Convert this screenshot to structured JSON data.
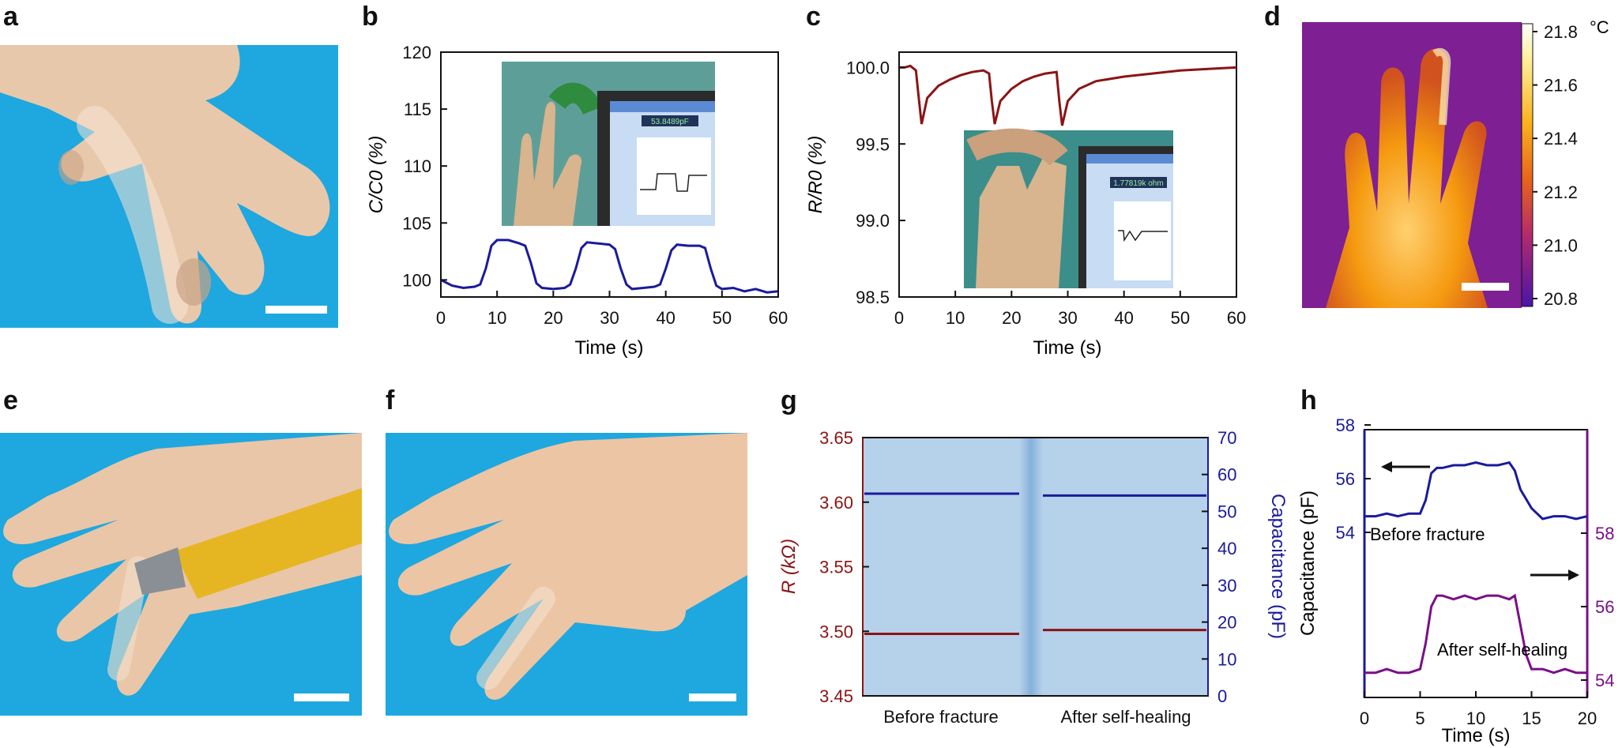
{
  "panels": {
    "a": "a",
    "b": "b",
    "c": "c",
    "d": "d",
    "e": "e",
    "f": "f",
    "g": "g",
    "h": "h"
  },
  "colors": {
    "blue_line": "#1a1a9c",
    "red_line": "#8b1414",
    "purple_line": "#7a0f87",
    "g_background": "#b6d1ea",
    "photo_blue": "#1fa7df",
    "skin": "#e9c6a8"
  },
  "chart_data": [
    {
      "panel": "b",
      "type": "line",
      "xlabel": "Time (s)",
      "ylabel": "C/C0 (%)",
      "xlim": [
        0,
        60
      ],
      "ylim": [
        98.5,
        120
      ],
      "xticks": [
        "0",
        "10",
        "20",
        "30",
        "40",
        "50",
        "60"
      ],
      "yticks": [
        "100",
        "105",
        "110",
        "115",
        "120"
      ],
      "series": [
        {
          "color": "#1a1a9c",
          "x": [
            0,
            2,
            4,
            6,
            7,
            8,
            9,
            10,
            12,
            14,
            15,
            16,
            17,
            18,
            20,
            22,
            23,
            24,
            25,
            26,
            28,
            30,
            31,
            32,
            33,
            34,
            36,
            38,
            39,
            40,
            41,
            42,
            44,
            46,
            47,
            48,
            49,
            50,
            52,
            54,
            56,
            58,
            60
          ],
          "y": [
            100.0,
            99.5,
            99.3,
            99.4,
            99.6,
            101.0,
            103.0,
            103.5,
            103.5,
            103.2,
            103.0,
            101.5,
            99.7,
            99.3,
            99.2,
            99.3,
            99.6,
            101.0,
            102.8,
            103.3,
            103.2,
            103.1,
            102.7,
            101.0,
            99.6,
            99.2,
            99.3,
            99.4,
            99.6,
            101.0,
            102.6,
            103.1,
            103.0,
            103.0,
            102.8,
            101.0,
            99.5,
            99.2,
            99.3,
            99.0,
            99.2,
            98.9,
            99.0
          ]
        }
      ],
      "inset": "photo of robotic finger bending with capacitance readout",
      "inset_readout": "53.8489pF"
    },
    {
      "panel": "c",
      "type": "line",
      "xlabel": "Time (s)",
      "ylabel": "R/R0 (%)",
      "xlim": [
        0,
        60
      ],
      "ylim": [
        98.5,
        100.1
      ],
      "xticks": [
        "0",
        "10",
        "20",
        "30",
        "40",
        "50",
        "60"
      ],
      "yticks": [
        "98.5",
        "99.0",
        "99.5",
        "100.0"
      ],
      "series": [
        {
          "color": "#8b1414",
          "x": [
            0,
            1,
            2,
            3,
            3.5,
            4,
            5,
            7,
            9,
            11,
            13,
            15,
            16,
            16.5,
            17,
            18,
            20,
            22,
            24,
            26,
            28,
            28.5,
            29,
            30,
            32,
            35,
            40,
            45,
            50,
            55,
            60
          ],
          "y": [
            100.0,
            100.0,
            100.01,
            99.98,
            99.8,
            99.63,
            99.8,
            99.88,
            99.92,
            99.95,
            99.97,
            99.98,
            99.96,
            99.78,
            99.63,
            99.78,
            99.86,
            99.91,
            99.94,
            99.96,
            99.97,
            99.78,
            99.62,
            99.78,
            99.86,
            99.91,
            99.94,
            99.96,
            99.98,
            99.99,
            100.0
          ]
        }
      ],
      "inset": "photo of finger press on robotic hand with resistance readout",
      "inset_readout": "1.77819k ohm"
    },
    {
      "panel": "d",
      "type": "heatmap",
      "colorbar_unit": "°C",
      "colorbar_ticks": [
        "21.8",
        "21.6",
        "21.4",
        "21.2",
        "21.0",
        "20.8"
      ],
      "range": [
        20.8,
        21.8
      ]
    },
    {
      "panel": "g",
      "type": "line",
      "categories": [
        "Before fracture",
        "After self-healing"
      ],
      "ylabel_left": "R (kΩ)",
      "ylabel_right": "Capacitance (pF)",
      "ylim_left": [
        3.45,
        3.65
      ],
      "ylim_right": [
        0,
        70
      ],
      "yticks_left": [
        "3.45",
        "3.50",
        "3.55",
        "3.60",
        "3.65"
      ],
      "yticks_right": [
        "0",
        "10",
        "20",
        "30",
        "40",
        "50",
        "60",
        "70"
      ],
      "series": [
        {
          "axis": "left",
          "color": "#8b1414",
          "before": 3.498,
          "after": 3.501
        },
        {
          "axis": "right",
          "color": "#1a1a9c",
          "before": 54.8,
          "after": 54.3
        }
      ]
    },
    {
      "panel": "h",
      "type": "line",
      "xlabel": "Time (s)",
      "ylabel": "Capacitance (pF)",
      "xlim": [
        0,
        20
      ],
      "xticks": [
        "0",
        "5",
        "10",
        "15",
        "20"
      ],
      "yticks_left": [
        "54",
        "56",
        "58"
      ],
      "yticks_right": [
        "54",
        "56",
        "58"
      ],
      "annotations": [
        "Before fracture",
        "After self-healing"
      ],
      "series": [
        {
          "name": "Before fracture",
          "axis": "left",
          "color": "#1a1a9c",
          "x": [
            0,
            1,
            2,
            3,
            4,
            5,
            5.5,
            6,
            6.5,
            7,
            8,
            9,
            10,
            11,
            12,
            13,
            13.5,
            14,
            15,
            16,
            17,
            18,
            19,
            20
          ],
          "y": [
            54.6,
            54.6,
            54.7,
            54.6,
            54.7,
            54.7,
            55.2,
            56.2,
            56.4,
            56.4,
            56.5,
            56.5,
            56.6,
            56.5,
            56.5,
            56.6,
            56.3,
            55.6,
            54.9,
            54.5,
            54.6,
            54.6,
            54.5,
            54.6
          ]
        },
        {
          "name": "After self-healing",
          "axis": "right",
          "color": "#7a0f87",
          "x": [
            0,
            1,
            2,
            3,
            4,
            5,
            5.5,
            6,
            6.5,
            7,
            8,
            9,
            10,
            11,
            12,
            13,
            13.5,
            14,
            14.5,
            15,
            16,
            17,
            18,
            19,
            20
          ],
          "y": [
            54.2,
            54.2,
            54.3,
            54.2,
            54.2,
            54.3,
            55.0,
            56.0,
            56.3,
            56.3,
            56.2,
            56.3,
            56.2,
            56.3,
            56.3,
            56.2,
            56.3,
            55.5,
            54.7,
            54.3,
            54.3,
            54.2,
            54.3,
            54.2,
            54.2
          ]
        }
      ]
    }
  ]
}
